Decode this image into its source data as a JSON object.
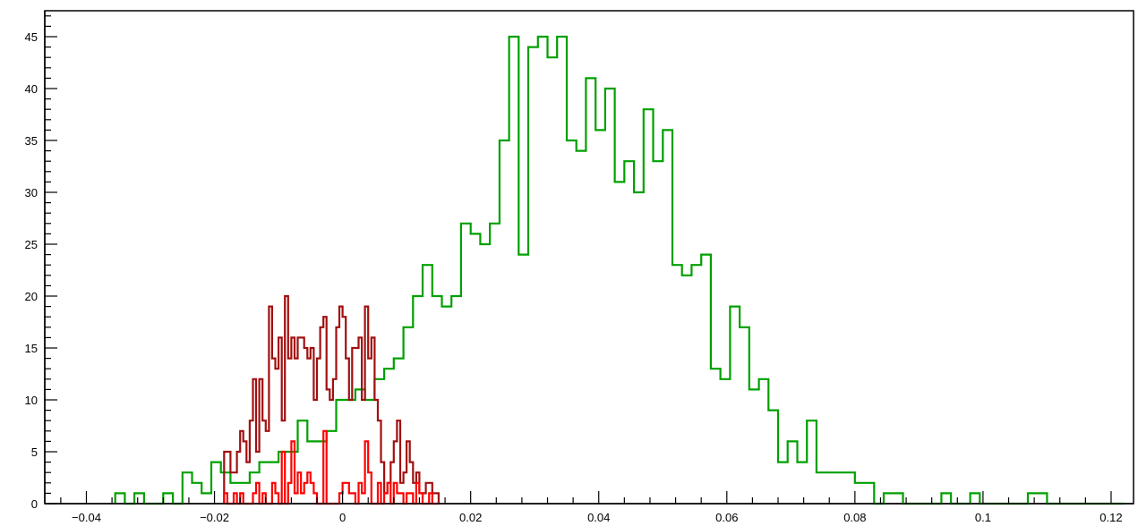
{
  "chart_data": {
    "type": "step-histogram",
    "title": "",
    "xlabel": "",
    "ylabel": "",
    "xlim": [
      -0.0465,
      0.1235
    ],
    "ylim": [
      0,
      47.5
    ],
    "grid": false,
    "x_ticks": [
      -0.04,
      -0.02,
      0,
      0.02,
      0.04,
      0.06,
      0.08,
      0.1,
      0.12
    ],
    "x_tick_labels": [
      "−0.04",
      "−0.02",
      "0",
      "0.02",
      "0.04",
      "0.06",
      "0.08",
      "0.1",
      "0.12"
    ],
    "y_ticks": [
      0,
      5,
      10,
      15,
      20,
      25,
      30,
      35,
      40,
      45
    ],
    "y_tick_labels": [
      "0",
      "5",
      "10",
      "15",
      "20",
      "25",
      "30",
      "35",
      "40",
      "45"
    ],
    "series": [
      {
        "color": "#00a000",
        "bin_start": -0.0355,
        "bin_width": 0.0015,
        "values": [
          1,
          0,
          1,
          0,
          0,
          1,
          0,
          3,
          2,
          1,
          4,
          3,
          2,
          2,
          3,
          4,
          4,
          5,
          5,
          8,
          6,
          6,
          7,
          10,
          10,
          11,
          10,
          12,
          13,
          14,
          17,
          20,
          23,
          20,
          19,
          20,
          27,
          26,
          25,
          27,
          35,
          45,
          24,
          44,
          45,
          43,
          45,
          35,
          34,
          41,
          36,
          40,
          31,
          33,
          30,
          38,
          33,
          36,
          23,
          22,
          23,
          24,
          13,
          12,
          19,
          17,
          11,
          12,
          9,
          4,
          6,
          4,
          8,
          3,
          3,
          3,
          3,
          2,
          2,
          0,
          1,
          1,
          0,
          0,
          0,
          0,
          1,
          0,
          0,
          1,
          0,
          0,
          0,
          0,
          0,
          1,
          1,
          0,
          0,
          0,
          0,
          0,
          0,
          0,
          0
        ]
      },
      {
        "color": "#a01010",
        "bin_start": -0.0185,
        "bin_width": 0.0005,
        "values": [
          5,
          5,
          3,
          3,
          5,
          7,
          6,
          4,
          8,
          12,
          5,
          12,
          8,
          7,
          19,
          14,
          13,
          16,
          8,
          20,
          14,
          16,
          14,
          16,
          16,
          15,
          14,
          15,
          10,
          14,
          17,
          18,
          11,
          10,
          12,
          17,
          19,
          18,
          14,
          10,
          15,
          15,
          16,
          10,
          19,
          14,
          16,
          10,
          8,
          4,
          1,
          2,
          4,
          6,
          8,
          2,
          3,
          6,
          4,
          2,
          3,
          1,
          1,
          2,
          2,
          1,
          1
        ]
      },
      {
        "color": "#ff0000",
        "bin_start": -0.0185,
        "bin_width": 0.0005,
        "values": [
          1,
          0,
          0,
          1,
          0,
          1,
          0,
          0,
          0,
          1,
          2,
          0,
          1,
          0,
          0,
          2,
          1,
          0,
          5,
          0,
          2,
          6,
          1,
          3,
          1,
          2,
          3,
          2,
          1,
          0,
          0,
          7,
          0,
          0,
          0,
          0,
          1,
          2,
          2,
          1,
          1,
          0,
          2,
          1,
          6,
          3,
          0,
          0,
          2,
          0,
          1,
          2,
          0,
          2,
          1,
          1,
          0,
          1,
          1,
          0,
          2,
          1,
          0,
          0,
          1,
          0,
          0
        ]
      }
    ]
  }
}
